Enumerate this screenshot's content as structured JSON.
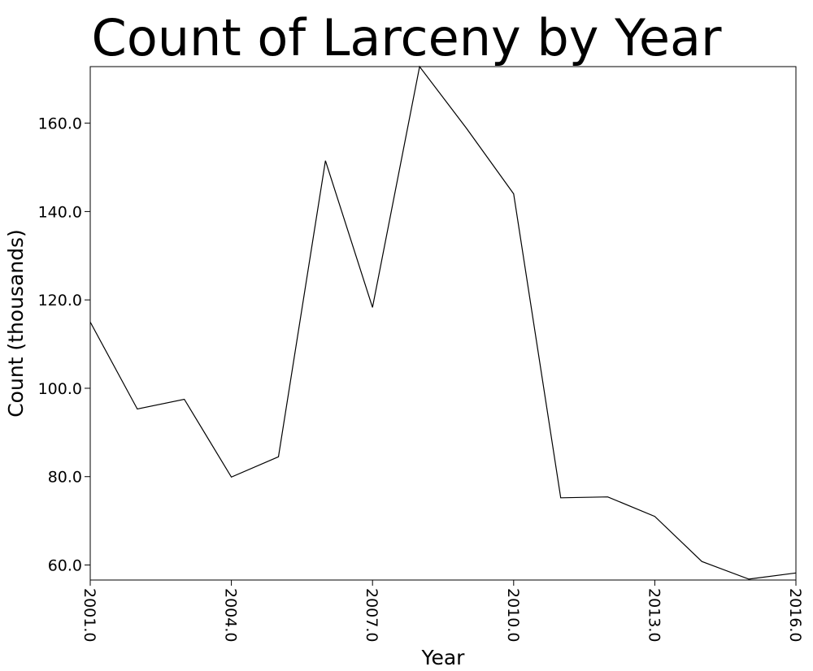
{
  "chart_data": {
    "type": "line",
    "title": "Count of Larceny by Year",
    "xlabel": "Year",
    "ylabel": "Count (thousands)",
    "x": [
      2001,
      2002,
      2003,
      2004,
      2005,
      2006,
      2007,
      2008,
      2009,
      2010,
      2011,
      2012,
      2013,
      2014,
      2015,
      2016
    ],
    "series": [
      {
        "values": [
          115.0,
          95.3,
          97.5,
          79.9,
          84.5,
          151.5,
          118.3,
          172.8,
          158.8,
          144.0,
          75.2,
          75.4,
          71.0,
          60.8,
          56.8,
          58.2
        ]
      }
    ],
    "xlim": [
      2001,
      2016
    ],
    "ylim": [
      56.6,
      172.8
    ],
    "x_ticks": [
      2001.0,
      2004.0,
      2007.0,
      2010.0,
      2013.0,
      2016.0
    ],
    "x_tick_labels": [
      "2001.0",
      "2004.0",
      "2007.0",
      "2010.0",
      "2013.0",
      "2016.0"
    ],
    "y_ticks": [
      60.0,
      80.0,
      100.0,
      120.0,
      140.0,
      160.0
    ],
    "y_tick_labels": [
      "60.0",
      "80.0",
      "100.0",
      "120.0",
      "140.0",
      "160.0"
    ],
    "grid": false,
    "legend": "none",
    "line_color": "#000000"
  }
}
